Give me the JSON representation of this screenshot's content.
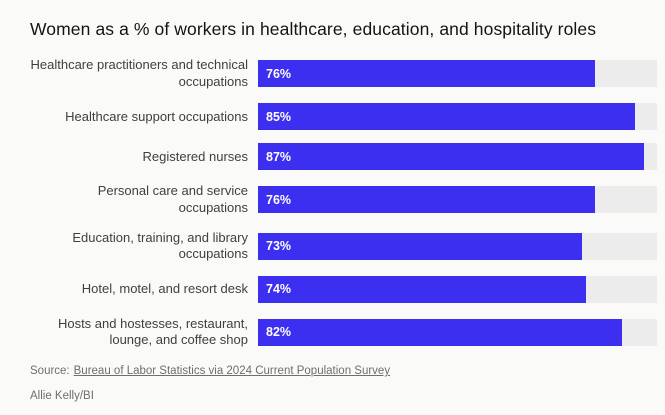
{
  "title": "Women as a % of workers in healthcare, education, and hospitality roles",
  "colors": {
    "bar": "#3c2ff0",
    "track": "#ececec",
    "background": "#fafaf9"
  },
  "chart_data": {
    "type": "bar",
    "orientation": "horizontal",
    "title": "Women as a % of workers in healthcare, education, and hospitality roles",
    "categories": [
      "Healthcare practitioners and technical occupations",
      "Healthcare support occupations",
      "Registered nurses",
      "Personal care and service occupations",
      "Education, training, and library occupations",
      "Hotel, motel, and resort desk",
      "Hosts and hostesses, restaurant, lounge, and coffee shop"
    ],
    "values": [
      76,
      85,
      87,
      76,
      73,
      74,
      82
    ],
    "value_labels": [
      "76%",
      "85%",
      "87%",
      "76%",
      "73%",
      "74%",
      "82%"
    ],
    "value_suffix": "%",
    "xlim": [
      0,
      90
    ],
    "grid": false,
    "legend": false
  },
  "source": {
    "prefix": "Source:",
    "link_text": "Bureau of Labor Statistics via 2024 Current Population Survey"
  },
  "credit": "Allie Kelly/BI"
}
